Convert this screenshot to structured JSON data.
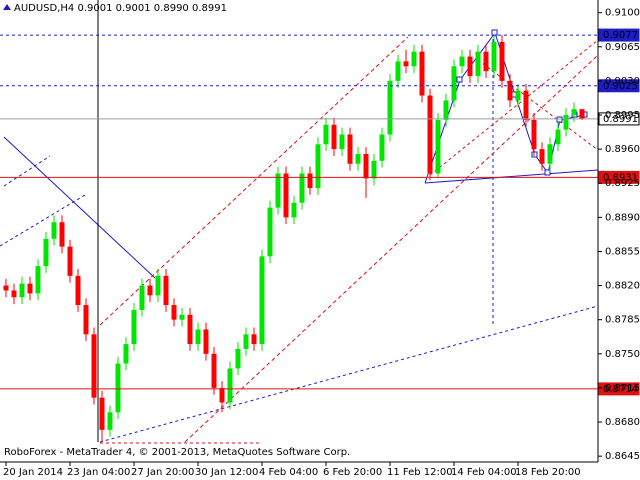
{
  "chart_data": {
    "type": "candlestick",
    "title": "AUDUSD,H4  0.9001 0.9001 0.8990 0.8991",
    "footer": "RoboForex - MetaTrader 4, © 2001-2013, MetaQuotes Software Corp.",
    "up_color": "#00e600",
    "down_color": "#ff0000",
    "categories": [
      "20 Jan 2014",
      null,
      null,
      null,
      null,
      null,
      null,
      null,
      "23 Jan 04:00",
      null,
      null,
      null,
      null,
      null,
      null,
      null,
      "27 Jan 20:00",
      null,
      null,
      null,
      null,
      null,
      null,
      null,
      "30 Jan 12:00",
      null,
      null,
      null,
      null,
      null,
      null,
      null,
      "4 Feb 04:00",
      null,
      null,
      null,
      null,
      null,
      null,
      null,
      "6 Feb 20:00",
      null,
      null,
      null,
      null,
      null,
      null,
      null,
      "11 Feb 12:00",
      null,
      null,
      null,
      null,
      null,
      null,
      null,
      "14 Feb 04:00",
      null,
      null,
      null,
      null,
      null,
      null,
      null,
      "18 Feb 20:00",
      null,
      null,
      null,
      null,
      null,
      null,
      null,
      null
    ],
    "open": [
      0.882,
      0.8815,
      0.8808,
      0.8822,
      0.8812,
      0.884,
      0.8868,
      0.8885,
      0.886,
      0.883,
      0.88,
      0.877,
      0.8705,
      0.8672,
      0.869,
      0.874,
      0.876,
      0.8795,
      0.882,
      0.881,
      0.883,
      0.88,
      0.8785,
      0.879,
      0.876,
      0.8775,
      0.875,
      0.8715,
      0.87,
      0.8735,
      0.8755,
      0.877,
      0.876,
      0.885,
      0.89,
      0.8935,
      0.889,
      0.8905,
      0.8935,
      0.892,
      0.8965,
      0.8985,
      0.896,
      0.8975,
      0.8945,
      0.8955,
      0.893,
      0.8948,
      0.8975,
      0.903,
      0.905,
      0.9045,
      0.906,
      0.9015,
      0.8935,
      0.899,
      0.901,
      0.9045,
      0.9055,
      0.9035,
      0.906,
      0.904,
      0.907,
      0.903,
      0.901,
      0.902,
      0.899,
      0.896,
      0.8945,
      0.8965,
      0.898,
      0.8995,
      0.9001
    ],
    "high": [
      0.8827,
      0.8822,
      0.8829,
      0.8829,
      0.8847,
      0.8875,
      0.8892,
      0.8892,
      0.8867,
      0.8837,
      0.8807,
      0.8777,
      0.8712,
      0.8697,
      0.8747,
      0.8767,
      0.8802,
      0.8827,
      0.8827,
      0.8837,
      0.8837,
      0.8807,
      0.8797,
      0.8797,
      0.8782,
      0.8782,
      0.8757,
      0.8722,
      0.8742,
      0.8762,
      0.8777,
      0.8777,
      0.8857,
      0.8907,
      0.8942,
      0.8942,
      0.8912,
      0.8942,
      0.8942,
      0.8972,
      0.8992,
      0.8992,
      0.8982,
      0.8982,
      0.8962,
      0.8962,
      0.8955,
      0.8982,
      0.9037,
      0.9057,
      0.9062,
      0.9067,
      0.9067,
      0.9022,
      0.8997,
      0.9017,
      0.9052,
      0.9062,
      0.9062,
      0.9067,
      0.9067,
      0.9077,
      0.9077,
      0.9037,
      0.9027,
      0.9027,
      0.8997,
      0.8967,
      0.8972,
      0.8987,
      0.9002,
      0.9008,
      0.9001
    ],
    "low": [
      0.8808,
      0.8801,
      0.8801,
      0.8805,
      0.8805,
      0.8833,
      0.8861,
      0.8853,
      0.8823,
      0.8793,
      0.8763,
      0.8698,
      0.866,
      0.8665,
      0.8683,
      0.8733,
      0.8753,
      0.8788,
      0.8803,
      0.8803,
      0.8793,
      0.8778,
      0.8778,
      0.8753,
      0.8753,
      0.8743,
      0.8708,
      0.869,
      0.8693,
      0.8728,
      0.8748,
      0.8753,
      0.8753,
      0.8843,
      0.8893,
      0.8883,
      0.8883,
      0.8898,
      0.8913,
      0.8913,
      0.8958,
      0.8953,
      0.8953,
      0.8938,
      0.8938,
      0.891,
      0.8923,
      0.8941,
      0.8968,
      0.9023,
      0.9038,
      0.9038,
      0.9008,
      0.8928,
      0.893,
      0.8983,
      0.9003,
      0.9038,
      0.9028,
      0.9028,
      0.9033,
      0.9033,
      0.9023,
      0.9003,
      0.9003,
      0.8983,
      0.8953,
      0.8938,
      0.8938,
      0.8958,
      0.8973,
      0.8988,
      0.899
    ],
    "close": [
      0.8815,
      0.8808,
      0.8822,
      0.8812,
      0.884,
      0.8868,
      0.8885,
      0.886,
      0.883,
      0.88,
      0.877,
      0.8705,
      0.8672,
      0.869,
      0.874,
      0.876,
      0.8795,
      0.882,
      0.881,
      0.883,
      0.88,
      0.8785,
      0.879,
      0.876,
      0.8775,
      0.875,
      0.8715,
      0.87,
      0.8735,
      0.8755,
      0.877,
      0.876,
      0.885,
      0.89,
      0.8935,
      0.889,
      0.8905,
      0.8935,
      0.892,
      0.8965,
      0.8985,
      0.896,
      0.8975,
      0.8945,
      0.8955,
      0.893,
      0.8948,
      0.8975,
      0.903,
      0.905,
      0.9045,
      0.906,
      0.9015,
      0.8935,
      0.899,
      0.901,
      0.9045,
      0.9055,
      0.9035,
      0.906,
      0.904,
      0.907,
      0.903,
      0.901,
      0.902,
      0.899,
      0.896,
      0.8945,
      0.8965,
      0.898,
      0.8995,
      0.9001,
      0.8991
    ],
    "ylim": [
      0.8639,
      0.9113
    ],
    "yticks": [
      {
        "value": 0.91,
        "label": "0.9100"
      },
      0.9065,
      {
        "value": 0.903,
        "label": "0.9030"
      },
      0.8995,
      {
        "value": 0.896,
        "label": "0.8960"
      },
      0.8925,
      {
        "value": 0.889,
        "label": "0.8890"
      },
      0.8855,
      {
        "value": 0.882,
        "label": "0.8820"
      },
      0.8785,
      {
        "value": 0.875,
        "label": "0.8750"
      },
      0.8715,
      {
        "value": 0.868,
        "label": "0.8680"
      },
      0.8645
    ],
    "levels": [
      {
        "value": 0.9077,
        "color": "#1c1cc8",
        "style": "dashed"
      },
      {
        "value": 0.9025,
        "color": "#1c1cc8",
        "style": "dashed"
      },
      {
        "value": 0.8991,
        "color": "#9a9a9a",
        "style": "solid"
      },
      {
        "value": 0.8931,
        "color": "#e01010",
        "style": "solid"
      },
      {
        "value": 0.8714,
        "color": "#e01010",
        "style": "solid"
      }
    ]
  }
}
